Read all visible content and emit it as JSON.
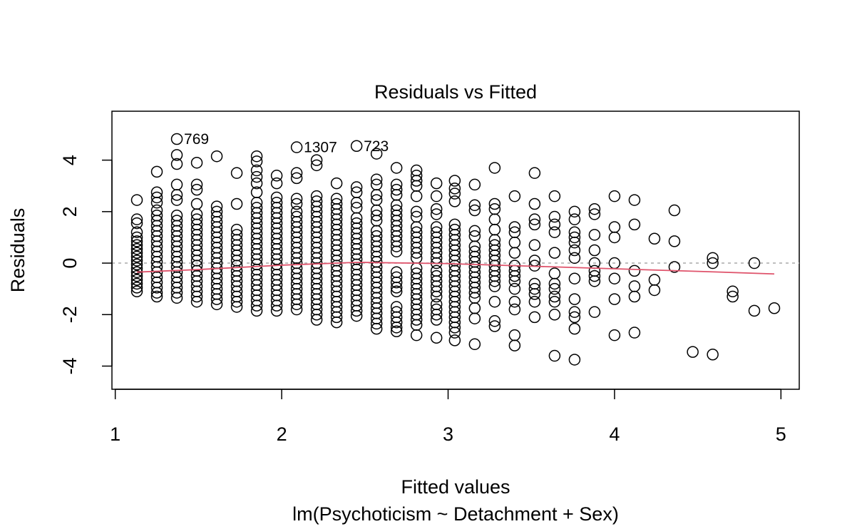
{
  "chart_data": {
    "type": "scatter",
    "title": "Residuals vs Fitted",
    "xlabel": "Fitted values",
    "subtitle": "lm(Psychoticism ~ Detachment + Sex)",
    "ylabel": "Residuals",
    "xlim": [
      0.98,
      5.11
    ],
    "ylim": [
      -4.9,
      5.9
    ],
    "xticks": [
      1,
      2,
      3,
      4,
      5
    ],
    "xtick_labels": [
      "1",
      "2",
      "3",
      "4",
      "5"
    ],
    "yticks": [
      -4,
      -2,
      0,
      2,
      4
    ],
    "ytick_labels": [
      "-4",
      "-2",
      "0",
      "2",
      "4"
    ],
    "grid": false,
    "reference_line": {
      "y": 0,
      "color": "#aaaaaa",
      "style": "dotted"
    },
    "columns": [
      {
        "x": 1.13,
        "values": [
          2.45,
          1.7,
          1.55,
          1.2,
          1.0,
          0.85,
          0.7,
          0.55,
          0.4,
          0.25,
          0.1,
          -0.05,
          -0.2,
          -0.35,
          -0.5,
          -0.65,
          -0.8,
          -0.95,
          -1.1
        ]
      },
      {
        "x": 1.25,
        "values": [
          3.55,
          2.75,
          2.55,
          2.35,
          2.05,
          1.85,
          1.65,
          1.45,
          1.25,
          1.05,
          0.85,
          0.65,
          0.45,
          0.25,
          0.05,
          -0.15,
          -0.35,
          -0.55,
          -0.75,
          -0.95,
          -1.15,
          -1.3
        ]
      },
      {
        "x": 1.37,
        "values": [
          4.82,
          4.2,
          3.85,
          3.05,
          2.65,
          2.45,
          1.85,
          1.65,
          1.45,
          1.25,
          1.05,
          0.85,
          0.65,
          0.45,
          0.25,
          0.05,
          -0.15,
          -0.35,
          -0.55,
          -0.75,
          -0.95,
          -1.15,
          -1.35
        ]
      },
      {
        "x": 1.49,
        "values": [
          3.9,
          3.05,
          2.85,
          2.3,
          1.9,
          1.7,
          1.5,
          1.3,
          1.1,
          0.9,
          0.7,
          0.5,
          0.3,
          0.1,
          -0.1,
          -0.3,
          -0.5,
          -0.7,
          -0.9,
          -1.1,
          -1.3,
          -1.5
        ]
      },
      {
        "x": 1.61,
        "values": [
          4.15,
          2.2,
          2.0,
          1.8,
          1.6,
          1.4,
          1.2,
          1.0,
          0.8,
          0.6,
          0.4,
          0.2,
          0.0,
          -0.2,
          -0.4,
          -0.6,
          -0.8,
          -1.0,
          -1.2,
          -1.4,
          -1.6
        ]
      },
      {
        "x": 1.73,
        "values": [
          3.5,
          2.3,
          1.3,
          1.1,
          0.9,
          0.7,
          0.5,
          0.3,
          0.1,
          -0.1,
          -0.3,
          -0.5,
          -0.7,
          -0.9,
          -1.1,
          -1.3,
          -1.5,
          -1.7
        ]
      },
      {
        "x": 1.85,
        "values": [
          4.15,
          3.95,
          3.6,
          3.35,
          3.1,
          2.75,
          2.35,
          2.15,
          1.95,
          1.75,
          1.55,
          1.35,
          1.15,
          0.95,
          0.75,
          0.55,
          0.35,
          0.15,
          -0.05,
          -0.25,
          -0.45,
          -0.65,
          -0.85,
          -1.05,
          -1.25,
          -1.45,
          -1.65,
          -1.85
        ]
      },
      {
        "x": 1.97,
        "values": [
          3.4,
          3.1,
          2.55,
          2.35,
          2.15,
          1.95,
          1.75,
          1.55,
          1.35,
          1.15,
          0.95,
          0.75,
          0.55,
          0.35,
          0.15,
          -0.05,
          -0.25,
          -0.45,
          -0.65,
          -0.85,
          -1.05,
          -1.25,
          -1.45,
          -1.65,
          -1.85
        ]
      },
      {
        "x": 2.09,
        "values": [
          4.5,
          3.5,
          3.3,
          2.5,
          2.3,
          2.0,
          1.8,
          1.6,
          1.4,
          1.2,
          1.0,
          0.8,
          0.6,
          0.4,
          0.2,
          0.0,
          -0.2,
          -0.4,
          -0.6,
          -0.8,
          -1.0,
          -1.2,
          -1.4,
          -1.6,
          -1.8
        ]
      },
      {
        "x": 2.21,
        "values": [
          4.0,
          3.8,
          2.6,
          2.4,
          2.2,
          2.0,
          1.8,
          1.6,
          1.4,
          1.2,
          1.0,
          0.8,
          0.6,
          0.4,
          0.2,
          0.0,
          -0.2,
          -0.4,
          -0.6,
          -0.8,
          -1.0,
          -1.2,
          -1.4,
          -1.6,
          -1.8,
          -2.0,
          -2.2
        ]
      },
      {
        "x": 2.33,
        "values": [
          3.1,
          2.5,
          2.3,
          2.1,
          1.9,
          1.7,
          1.5,
          1.3,
          1.1,
          0.9,
          0.7,
          0.5,
          0.3,
          0.1,
          -0.1,
          -0.3,
          -0.5,
          -0.7,
          -0.9,
          -1.1,
          -1.3,
          -1.5,
          -1.7,
          -1.9,
          -2.1,
          -2.3
        ]
      },
      {
        "x": 2.45,
        "values": [
          4.55,
          2.95,
          2.75,
          2.35,
          2.15,
          1.75,
          1.55,
          1.35,
          1.15,
          0.95,
          0.75,
          0.55,
          0.35,
          0.15,
          -0.05,
          -0.25,
          -0.45,
          -0.65,
          -0.85,
          -1.05,
          -1.25,
          -1.45,
          -1.65,
          -1.85,
          -2.05
        ]
      },
      {
        "x": 2.57,
        "values": [
          4.25,
          3.25,
          3.05,
          2.65,
          2.45,
          2.05,
          1.85,
          1.65,
          1.25,
          1.05,
          0.85,
          0.65,
          0.45,
          0.25,
          0.05,
          -0.15,
          -0.35,
          -0.55,
          -0.75,
          -0.95,
          -1.15,
          -1.35,
          -1.55,
          -1.75,
          -1.95,
          -2.15,
          -2.35,
          -2.55
        ]
      },
      {
        "x": 2.69,
        "values": [
          3.7,
          3.05,
          2.85,
          2.65,
          2.25,
          2.05,
          1.85,
          1.65,
          1.45,
          1.25,
          1.05,
          0.85,
          0.65,
          0.45,
          -0.35,
          -0.55,
          -0.75,
          -0.95,
          -1.1,
          -1.7,
          -1.9,
          -2.1,
          -2.3,
          -2.5,
          -2.65
        ]
      },
      {
        "x": 2.81,
        "values": [
          3.6,
          3.4,
          3.2,
          3.0,
          2.6,
          2.0,
          1.8,
          1.4,
          1.2,
          1.0,
          0.8,
          0.6,
          0.4,
          0.2,
          -0.2,
          -0.4,
          -0.6,
          -0.8,
          -1.0,
          -1.2,
          -1.4,
          -1.6,
          -1.8,
          -2.0,
          -2.2,
          -2.4,
          -2.8
        ]
      },
      {
        "x": 2.93,
        "values": [
          3.1,
          2.6,
          2.1,
          1.9,
          1.4,
          1.2,
          1.0,
          0.8,
          0.6,
          0.4,
          0.2,
          0.0,
          -0.3,
          -0.5,
          -0.7,
          -0.9,
          -1.1,
          -1.3,
          -1.6,
          -1.8,
          -2.0,
          -2.2,
          -2.9
        ]
      },
      {
        "x": 3.04,
        "values": [
          3.2,
          2.9,
          2.7,
          2.4,
          1.5,
          1.3,
          1.1,
          0.9,
          0.7,
          0.5,
          0.3,
          0.1,
          -0.1,
          -0.3,
          -0.5,
          -0.7,
          -0.9,
          -1.1,
          -1.3,
          -1.5,
          -1.7,
          -1.9,
          -2.1,
          -2.3,
          -2.5,
          -2.7,
          -3.0
        ]
      },
      {
        "x": 3.16,
        "values": [
          3.05,
          2.25,
          2.05,
          1.25,
          1.05,
          0.65,
          0.45,
          0.25,
          0.05,
          -0.15,
          -0.35,
          -0.55,
          -0.75,
          -0.95,
          -1.15,
          -1.35,
          -1.75,
          -2.15,
          -3.15
        ]
      },
      {
        "x": 3.28,
        "values": [
          3.7,
          2.3,
          2.1,
          1.7,
          1.3,
          0.9,
          0.7,
          0.5,
          0.3,
          0.1,
          -0.1,
          -0.3,
          -0.5,
          -0.7,
          -0.9,
          -1.5,
          -2.25,
          -2.45
        ]
      },
      {
        "x": 3.4,
        "values": [
          2.6,
          1.4,
          1.2,
          0.8,
          0.4,
          -0.1,
          -0.3,
          -0.5,
          -0.7,
          -1.0,
          -1.5,
          -1.8,
          -2.8,
          -3.2
        ]
      },
      {
        "x": 3.52,
        "values": [
          3.5,
          2.3,
          1.7,
          1.5,
          0.7,
          0.1,
          -0.1,
          -0.8,
          -1.0,
          -1.2,
          -1.5,
          -2.1
        ]
      },
      {
        "x": 3.64,
        "values": [
          2.6,
          1.8,
          1.5,
          1.2,
          0.4,
          -0.4,
          -0.8,
          -1.0,
          -1.3,
          -1.5,
          -2.0,
          -3.6
        ]
      },
      {
        "x": 3.76,
        "values": [
          2.0,
          1.7,
          1.2,
          1.0,
          0.8,
          0.5,
          0.2,
          -0.6,
          -1.4,
          -1.9,
          -2.1,
          -2.55,
          -3.75
        ]
      },
      {
        "x": 3.88,
        "values": [
          2.1,
          1.9,
          1.1,
          0.5,
          0.0,
          -0.3,
          -0.5,
          -0.7,
          -1.9
        ]
      },
      {
        "x": 4.0,
        "values": [
          2.6,
          1.4,
          1.0,
          0.0,
          -0.6,
          -1.4,
          -2.8
        ]
      },
      {
        "x": 4.12,
        "values": [
          2.45,
          1.5,
          -0.3,
          -0.9,
          -1.3,
          -2.7
        ]
      },
      {
        "x": 4.24,
        "values": [
          0.95,
          -0.65,
          -1.05
        ]
      },
      {
        "x": 4.36,
        "values": [
          2.05,
          0.85,
          -0.15
        ]
      },
      {
        "x": 4.47,
        "values": [
          -3.45
        ]
      },
      {
        "x": 4.59,
        "values": [
          0.2,
          0.0,
          -3.55
        ]
      },
      {
        "x": 4.71,
        "values": [
          -1.1,
          -1.3
        ]
      },
      {
        "x": 4.84,
        "values": [
          0.0,
          -1.85
        ]
      },
      {
        "x": 4.96,
        "values": [
          -1.75
        ]
      }
    ],
    "smooth_line": {
      "color": "#df536b",
      "x": [
        1.13,
        1.5,
        2.0,
        2.45,
        3.0,
        3.5,
        4.0,
        4.5,
        4.96
      ],
      "y": [
        -0.35,
        -0.25,
        -0.08,
        0.03,
        -0.02,
        -0.12,
        -0.22,
        -0.32,
        -0.42
      ]
    },
    "point_labels": [
      {
        "x": 1.37,
        "y": 4.82,
        "label": "769"
      },
      {
        "x": 2.09,
        "y": 4.5,
        "label": "1307"
      },
      {
        "x": 2.45,
        "y": 4.55,
        "label": "723"
      }
    ]
  }
}
